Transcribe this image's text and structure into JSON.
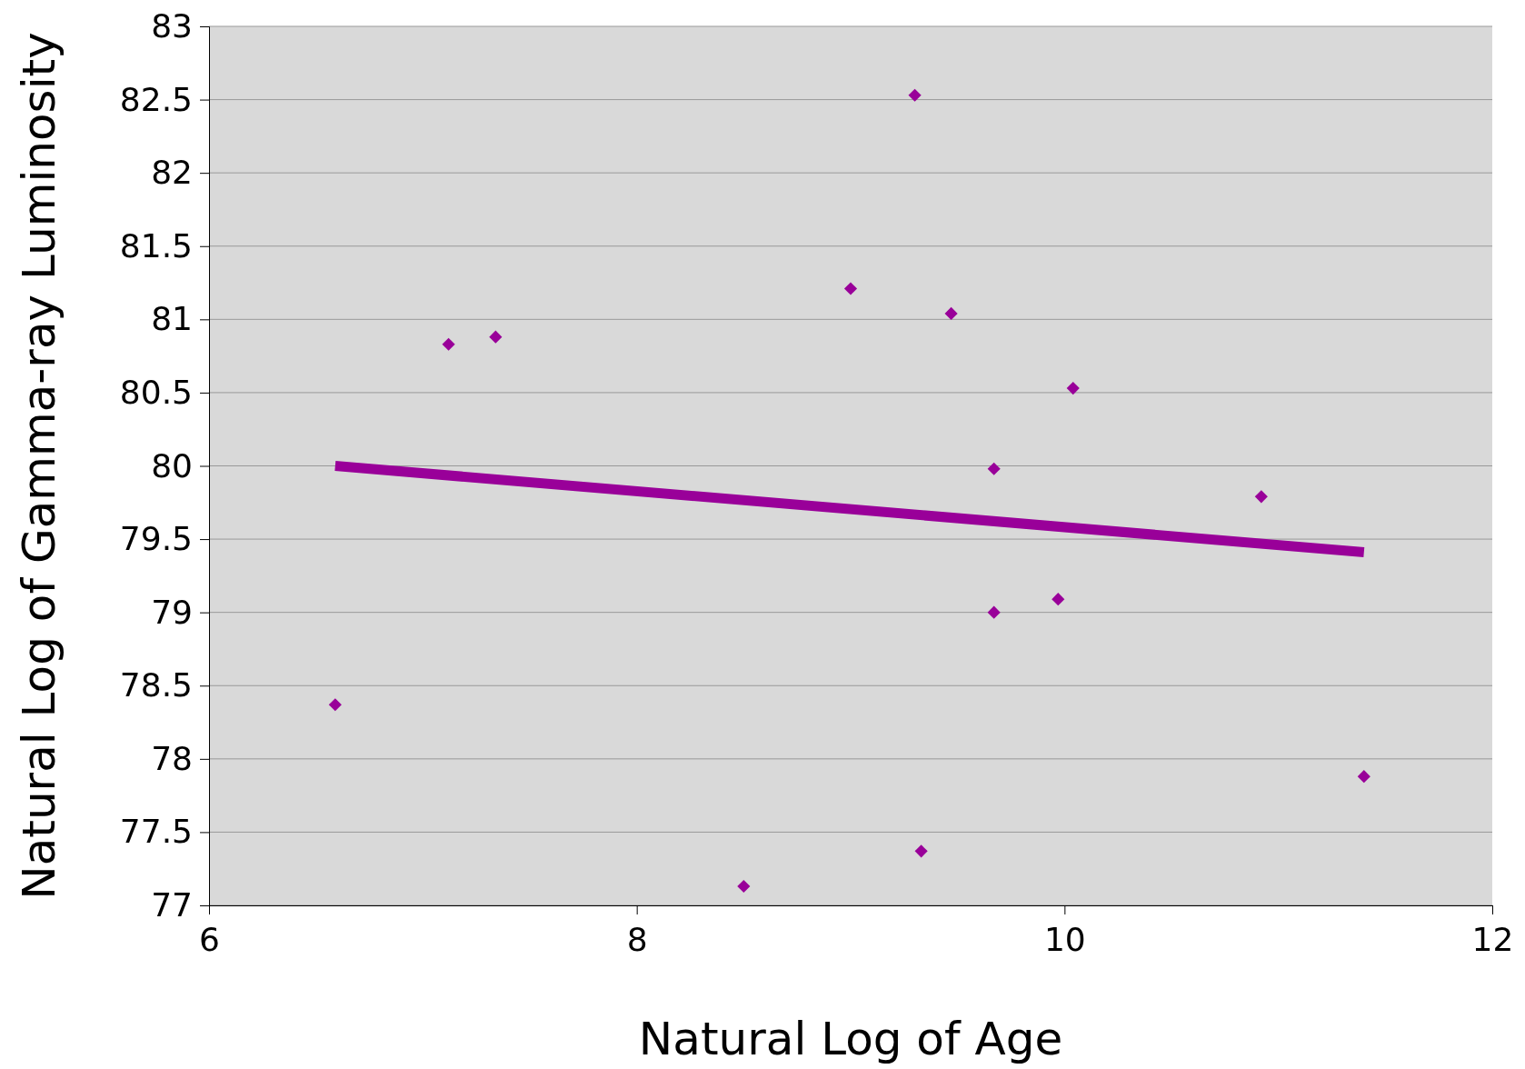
{
  "chart_data": {
    "type": "scatter",
    "xlabel": "Natural Log of Age",
    "ylabel": "Natural Log of Gamma-ray Luminosity",
    "xlim": [
      6,
      12
    ],
    "xticks": [
      6,
      8,
      10,
      12
    ],
    "ylim": [
      77,
      83
    ],
    "yticks": [
      77,
      77.5,
      78,
      78.5,
      79,
      79.5,
      80,
      80.5,
      81,
      81.5,
      82,
      82.5,
      83
    ],
    "grid": "y",
    "series": [
      {
        "marker": "diamond",
        "color": "#990099",
        "x": [
          6.59,
          7.12,
          7.34,
          8.5,
          9.0,
          9.3,
          9.33,
          9.47,
          9.67,
          9.67,
          9.97,
          10.04,
          10.92,
          11.4
        ],
        "values": [
          78.37,
          80.83,
          80.88,
          77.13,
          81.21,
          82.53,
          77.37,
          81.04,
          79.98,
          79.0,
          79.09,
          80.53,
          79.79,
          77.88
        ]
      },
      {
        "type": "line",
        "color": "#990099",
        "x": [
          6.59,
          11.4
        ],
        "values": [
          80.0,
          79.41
        ]
      }
    ]
  }
}
